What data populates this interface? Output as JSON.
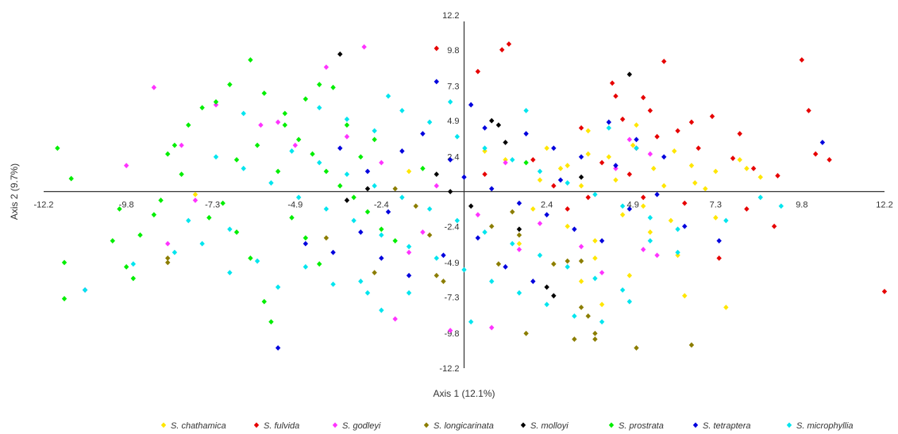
{
  "chart_data": {
    "type": "scatter",
    "xlabel": "Axis 1 (12.1%)",
    "ylabel": "Axis 2 (9.7%)",
    "xlim": [
      -12.2,
      12.2
    ],
    "ylim": [
      -12.2,
      12.2
    ],
    "x_ticks": [
      "-12.2",
      "-9.8",
      "-7.3",
      "-4.9",
      "-2.4",
      "2.4",
      "4.9",
      "7.3",
      "9.8",
      "12.2"
    ],
    "y_ticks": [
      "12.2",
      "9.8",
      "7.3",
      "4.9",
      "2.4",
      "-2.4",
      "-4.9",
      "-7.3",
      "-9.8",
      "-12.2"
    ],
    "grid": false,
    "legend_position": "bottom",
    "series": [
      {
        "name": "S. chathamica",
        "color": "#ffe600",
        "points": [
          [
            1.2,
            2.2
          ],
          [
            2.4,
            3.0
          ],
          [
            3.0,
            1.8
          ],
          [
            3.6,
            4.2
          ],
          [
            4.2,
            2.4
          ],
          [
            4.9,
            3.2
          ],
          [
            5.5,
            1.6
          ],
          [
            6.1,
            2.8
          ],
          [
            6.7,
            0.6
          ],
          [
            7.3,
            1.4
          ],
          [
            8.0,
            2.2
          ],
          [
            8.6,
            1.0
          ],
          [
            2.0,
            -1.2
          ],
          [
            3.0,
            -2.4
          ],
          [
            3.8,
            -3.4
          ],
          [
            4.6,
            -1.6
          ],
          [
            5.4,
            -2.8
          ],
          [
            6.2,
            -4.4
          ],
          [
            7.3,
            -1.8
          ],
          [
            1.6,
            -3.6
          ],
          [
            2.6,
            -5.0
          ],
          [
            3.4,
            -6.2
          ],
          [
            4.0,
            -7.8
          ],
          [
            5.2,
            -1.0
          ],
          [
            6.4,
            -7.2
          ],
          [
            7.6,
            -8.0
          ],
          [
            5.8,
            0.4
          ],
          [
            6.6,
            1.8
          ],
          [
            4.4,
            0.8
          ],
          [
            3.4,
            0.4
          ],
          [
            2.2,
            0.8
          ],
          [
            -7.8,
            -0.2
          ],
          [
            -1.6,
            1.4
          ],
          [
            0.6,
            2.8
          ],
          [
            8.2,
            1.6
          ],
          [
            5.0,
            4.6
          ],
          [
            6.0,
            -2.0
          ],
          [
            3.8,
            -4.6
          ],
          [
            4.8,
            -5.8
          ],
          [
            7.0,
            0.2
          ],
          [
            2.8,
            1.6
          ],
          [
            3.6,
            2.6
          ]
        ]
      },
      {
        "name": "S. fulvida",
        "color": "#e60000",
        "points": [
          [
            -0.8,
            9.9
          ],
          [
            0.4,
            8.3
          ],
          [
            1.3,
            10.2
          ],
          [
            1.1,
            9.8
          ],
          [
            5.8,
            9.0
          ],
          [
            9.8,
            9.1
          ],
          [
            10.0,
            5.6
          ],
          [
            4.3,
            7.5
          ],
          [
            5.2,
            6.5
          ],
          [
            6.2,
            4.2
          ],
          [
            6.8,
            3.0
          ],
          [
            7.2,
            5.2
          ],
          [
            7.8,
            2.3
          ],
          [
            8.4,
            1.6
          ],
          [
            9.1,
            1.1
          ],
          [
            10.2,
            2.6
          ],
          [
            10.6,
            2.2
          ],
          [
            5.0,
            3.0
          ],
          [
            4.0,
            2.0
          ],
          [
            3.4,
            4.4
          ],
          [
            4.6,
            5.0
          ],
          [
            5.6,
            3.8
          ],
          [
            6.4,
            -0.8
          ],
          [
            7.4,
            -4.6
          ],
          [
            9.0,
            -2.4
          ],
          [
            12.2,
            -6.9
          ],
          [
            8.2,
            -1.2
          ],
          [
            4.8,
            1.2
          ],
          [
            3.6,
            -0.4
          ],
          [
            2.6,
            0.4
          ],
          [
            5.2,
            -0.4
          ],
          [
            3.0,
            -1.2
          ],
          [
            6.6,
            4.8
          ],
          [
            8.0,
            4.0
          ],
          [
            2.0,
            2.2
          ],
          [
            0.6,
            1.2
          ],
          [
            4.4,
            6.6
          ],
          [
            5.4,
            5.6
          ]
        ]
      },
      {
        "name": "S. godleyi",
        "color": "#ff33ff",
        "points": [
          [
            -9.0,
            7.2
          ],
          [
            -9.8,
            1.8
          ],
          [
            -8.2,
            3.2
          ],
          [
            -7.2,
            6.0
          ],
          [
            -7.8,
            -0.6
          ],
          [
            -8.6,
            -3.6
          ],
          [
            -5.9,
            4.6
          ],
          [
            -4.9,
            3.2
          ],
          [
            -4.0,
            8.6
          ],
          [
            -2.9,
            10.0
          ],
          [
            -3.4,
            3.8
          ],
          [
            -2.4,
            2.0
          ],
          [
            -1.6,
            -4.2
          ],
          [
            -0.4,
            -9.6
          ],
          [
            -1.2,
            -2.8
          ],
          [
            -2.0,
            -8.8
          ],
          [
            0.8,
            -9.4
          ],
          [
            1.6,
            -4.0
          ],
          [
            2.2,
            -2.2
          ],
          [
            3.4,
            -3.8
          ],
          [
            4.0,
            -5.6
          ],
          [
            5.2,
            -4.0
          ],
          [
            5.6,
            -4.4
          ],
          [
            4.4,
            1.6
          ],
          [
            4.8,
            3.6
          ],
          [
            5.4,
            2.6
          ],
          [
            0.4,
            -1.6
          ],
          [
            -0.8,
            0.4
          ],
          [
            1.2,
            2.0
          ],
          [
            -5.4,
            4.8
          ]
        ]
      },
      {
        "name": "S. longicarinata",
        "color": "#8b7d00",
        "points": [
          [
            -8.6,
            -4.6
          ],
          [
            -8.6,
            -4.9
          ],
          [
            -4.0,
            -3.2
          ],
          [
            -2.0,
            0.2
          ],
          [
            -1.4,
            -1.0
          ],
          [
            -1.0,
            -3.0
          ],
          [
            -0.8,
            -5.8
          ],
          [
            -0.6,
            -6.2
          ],
          [
            1.0,
            -5.0
          ],
          [
            1.6,
            -3.0
          ],
          [
            2.6,
            -5.0
          ],
          [
            3.0,
            -4.8
          ],
          [
            3.4,
            -4.8
          ],
          [
            3.4,
            -8.0
          ],
          [
            3.6,
            -8.6
          ],
          [
            3.8,
            -10.2
          ],
          [
            3.8,
            -9.8
          ],
          [
            3.2,
            -10.2
          ],
          [
            1.8,
            -9.8
          ],
          [
            5.0,
            -10.8
          ],
          [
            6.6,
            -10.6
          ],
          [
            -2.6,
            -5.6
          ],
          [
            0.8,
            -2.4
          ],
          [
            1.4,
            -1.4
          ]
        ]
      },
      {
        "name": "S. molloyi",
        "color": "#000000",
        "points": [
          [
            -3.6,
            9.5
          ],
          [
            4.8,
            8.1
          ],
          [
            0.8,
            4.9
          ],
          [
            1.0,
            4.6
          ],
          [
            1.2,
            3.4
          ],
          [
            -2.8,
            0.2
          ],
          [
            -0.8,
            1.2
          ],
          [
            -0.4,
            0.0
          ],
          [
            1.6,
            -2.6
          ],
          [
            2.4,
            -6.6
          ],
          [
            2.6,
            -7.2
          ],
          [
            3.4,
            1.0
          ],
          [
            -3.4,
            -0.6
          ],
          [
            0.2,
            -1.0
          ]
        ]
      },
      {
        "name": "S. prostrata",
        "color": "#00ee00",
        "points": [
          [
            -11.8,
            3.0
          ],
          [
            -11.4,
            0.9
          ],
          [
            -11.6,
            -4.9
          ],
          [
            -11.6,
            -7.4
          ],
          [
            -10.0,
            -1.2
          ],
          [
            -10.2,
            -3.4
          ],
          [
            -9.4,
            -3.0
          ],
          [
            -9.8,
            -5.2
          ],
          [
            -9.6,
            -6.0
          ],
          [
            -8.8,
            -0.6
          ],
          [
            -8.4,
            3.2
          ],
          [
            -8.0,
            4.6
          ],
          [
            -7.6,
            5.8
          ],
          [
            -7.2,
            6.2
          ],
          [
            -6.8,
            7.4
          ],
          [
            -6.2,
            9.1
          ],
          [
            -5.8,
            6.8
          ],
          [
            -5.2,
            4.6
          ],
          [
            -4.8,
            3.6
          ],
          [
            -4.4,
            2.6
          ],
          [
            -4.0,
            1.4
          ],
          [
            -3.6,
            0.4
          ],
          [
            -3.2,
            -0.4
          ],
          [
            -2.8,
            -1.4
          ],
          [
            -2.4,
            -2.6
          ],
          [
            -2.0,
            -3.4
          ],
          [
            -6.6,
            2.2
          ],
          [
            -7.0,
            -0.8
          ],
          [
            -6.6,
            -2.8
          ],
          [
            -6.2,
            -4.6
          ],
          [
            -5.8,
            -7.6
          ],
          [
            -5.6,
            -9.0
          ],
          [
            -5.2,
            5.4
          ],
          [
            -4.6,
            6.4
          ],
          [
            -4.2,
            7.4
          ],
          [
            -3.8,
            7.2
          ],
          [
            -8.6,
            2.6
          ],
          [
            -8.2,
            1.2
          ],
          [
            -7.4,
            -1.8
          ],
          [
            -5.0,
            -1.8
          ],
          [
            -4.6,
            -3.2
          ],
          [
            -4.2,
            -5.0
          ],
          [
            -3.0,
            2.4
          ],
          [
            -2.6,
            3.6
          ],
          [
            -6.0,
            3.2
          ],
          [
            -5.4,
            1.4
          ],
          [
            -3.4,
            4.6
          ],
          [
            -1.2,
            1.6
          ],
          [
            1.8,
            2.0
          ],
          [
            -9.0,
            -1.6
          ]
        ]
      },
      {
        "name": "S. tetraptera",
        "color": "#0000dd",
        "points": [
          [
            -11.0,
            -6.8
          ],
          [
            -5.4,
            -10.8
          ],
          [
            -0.8,
            7.6
          ],
          [
            0.2,
            6.0
          ],
          [
            0.6,
            4.4
          ],
          [
            1.8,
            4.0
          ],
          [
            2.6,
            3.0
          ],
          [
            3.4,
            2.4
          ],
          [
            4.4,
            1.8
          ],
          [
            5.0,
            3.6
          ],
          [
            5.8,
            2.4
          ],
          [
            6.4,
            -2.4
          ],
          [
            7.4,
            -3.4
          ],
          [
            10.4,
            3.4
          ],
          [
            -1.8,
            2.8
          ],
          [
            -1.2,
            4.0
          ],
          [
            -0.4,
            2.2
          ],
          [
            0.0,
            1.0
          ],
          [
            0.8,
            0.2
          ],
          [
            1.6,
            -0.8
          ],
          [
            2.4,
            -1.6
          ],
          [
            3.2,
            -2.6
          ],
          [
            4.0,
            -3.4
          ],
          [
            4.8,
            -1.2
          ],
          [
            5.6,
            -0.2
          ],
          [
            -2.2,
            -1.4
          ],
          [
            -3.0,
            -2.8
          ],
          [
            -3.8,
            -4.2
          ],
          [
            -4.6,
            -3.6
          ],
          [
            -2.4,
            -4.6
          ],
          [
            -1.6,
            -5.8
          ],
          [
            -0.6,
            -4.4
          ],
          [
            0.4,
            -3.2
          ],
          [
            1.2,
            -5.2
          ],
          [
            2.0,
            -6.2
          ],
          [
            -2.8,
            1.4
          ],
          [
            -3.6,
            3.0
          ],
          [
            2.8,
            0.8
          ],
          [
            4.2,
            4.8
          ]
        ]
      },
      {
        "name": "S. microphyllia",
        "color": "#00e5ee",
        "points": [
          [
            -11.0,
            -6.8
          ],
          [
            -9.6,
            -5.0
          ],
          [
            -8.4,
            -4.2
          ],
          [
            -7.6,
            -3.6
          ],
          [
            -6.8,
            -5.6
          ],
          [
            -6.0,
            -4.8
          ],
          [
            -5.4,
            -6.6
          ],
          [
            -4.6,
            -5.2
          ],
          [
            -3.8,
            -6.4
          ],
          [
            -3.0,
            -6.2
          ],
          [
            -2.4,
            -8.2
          ],
          [
            -1.6,
            -7.0
          ],
          [
            -7.2,
            2.4
          ],
          [
            -6.4,
            1.6
          ],
          [
            -5.6,
            0.6
          ],
          [
            -4.8,
            -0.4
          ],
          [
            -4.0,
            -1.2
          ],
          [
            -3.2,
            -2.0
          ],
          [
            -2.4,
            -3.0
          ],
          [
            -1.6,
            -3.8
          ],
          [
            -0.8,
            -4.6
          ],
          [
            0.0,
            -5.4
          ],
          [
            0.8,
            -6.2
          ],
          [
            1.6,
            -7.0
          ],
          [
            2.4,
            -7.8
          ],
          [
            3.2,
            -8.6
          ],
          [
            4.0,
            -9.0
          ],
          [
            4.8,
            -7.6
          ],
          [
            -4.2,
            5.8
          ],
          [
            -3.4,
            5.0
          ],
          [
            -2.6,
            4.2
          ],
          [
            -1.8,
            5.6
          ],
          [
            -1.0,
            4.8
          ],
          [
            -0.2,
            3.8
          ],
          [
            0.6,
            3.0
          ],
          [
            1.4,
            2.2
          ],
          [
            2.2,
            1.4
          ],
          [
            3.0,
            0.6
          ],
          [
            3.8,
            -0.2
          ],
          [
            4.6,
            -1.0
          ],
          [
            5.4,
            -1.8
          ],
          [
            6.2,
            -2.6
          ],
          [
            -5.0,
            2.8
          ],
          [
            -4.2,
            2.0
          ],
          [
            -3.4,
            1.2
          ],
          [
            -2.6,
            0.4
          ],
          [
            -1.8,
            -0.4
          ],
          [
            -1.0,
            -1.2
          ],
          [
            -0.2,
            -2.0
          ],
          [
            0.6,
            -2.8
          ],
          [
            1.4,
            -3.6
          ],
          [
            2.2,
            -4.4
          ],
          [
            3.0,
            -5.2
          ],
          [
            3.8,
            -6.0
          ],
          [
            4.6,
            -6.8
          ],
          [
            5.4,
            -3.4
          ],
          [
            6.2,
            -4.2
          ],
          [
            7.6,
            -2.0
          ],
          [
            8.6,
            -0.4
          ],
          [
            9.2,
            -1.0
          ],
          [
            4.2,
            4.4
          ],
          [
            5.0,
            3.0
          ],
          [
            1.8,
            5.6
          ],
          [
            -0.4,
            6.2
          ],
          [
            -2.2,
            6.6
          ],
          [
            0.2,
            -9.0
          ],
          [
            -2.8,
            -7.0
          ],
          [
            -6.4,
            5.4
          ],
          [
            -6.8,
            -2.6
          ],
          [
            -8.0,
            -2.0
          ]
        ]
      }
    ]
  }
}
